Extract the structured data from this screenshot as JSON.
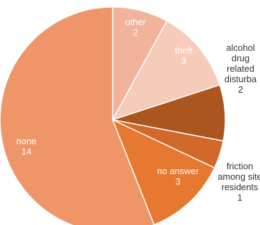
{
  "chart_data": {
    "type": "pie",
    "start": "top",
    "direction": "clockwise",
    "slices": [
      {
        "label_lines": [
          "other"
        ],
        "value": 2,
        "value_text": "2",
        "color": "#f1b39a"
      },
      {
        "label_lines": [
          "theft"
        ],
        "value": 3,
        "value_text": "3",
        "color": "#f5cbb9"
      },
      {
        "label_lines": [
          "alcohol",
          "drug",
          "related",
          "disturba"
        ],
        "value": 2,
        "value_text": "2",
        "color": "#ab551f"
      },
      {
        "label_lines": [
          "friction",
          "among site",
          "residents"
        ],
        "value": 1,
        "value_text": "1",
        "color": "#d1692a"
      },
      {
        "label_lines": [
          "no answer"
        ],
        "value": 3,
        "value_text": "3",
        "color": "#e6782f"
      },
      {
        "label_lines": [
          "none"
        ],
        "value": 14,
        "value_text": "14",
        "color": "#ef9669"
      }
    ]
  }
}
